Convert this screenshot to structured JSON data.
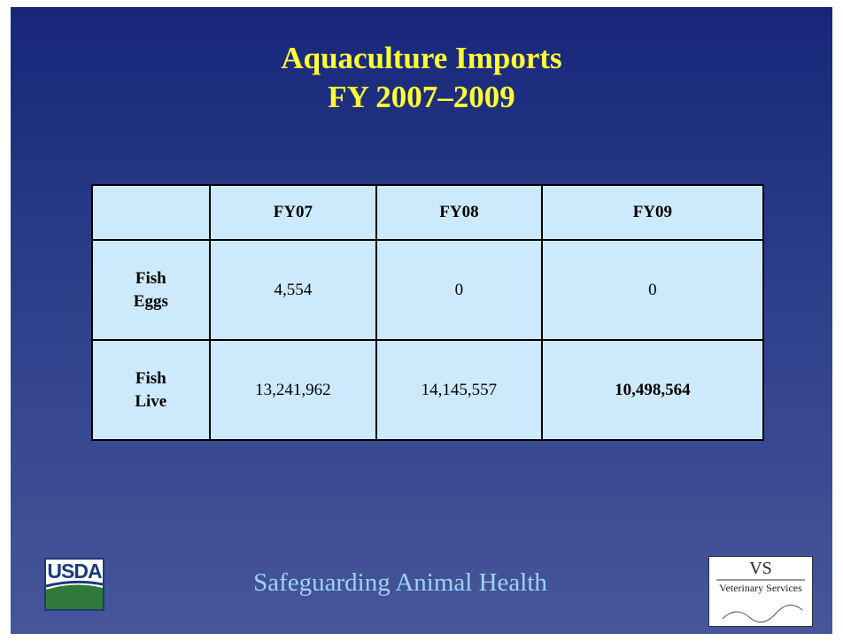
{
  "slide": {
    "title": [
      "Aquaculture Imports",
      "FY 2007–2009"
    ],
    "table": {
      "columns": [
        "FY07",
        "FY08",
        "FY09"
      ],
      "rows": [
        {
          "label": "Fish Eggs",
          "cells": [
            "4,554",
            "0",
            "0"
          ]
        },
        {
          "label": "Fish Live",
          "cells": [
            "13,241,962",
            "14,145,557",
            "10,498,564"
          ]
        }
      ]
    },
    "footer": "Safeguarding Animal Health",
    "logos": {
      "usda": "USDA",
      "vs": "VS",
      "vs_caption": "Veterinary Services"
    }
  }
}
